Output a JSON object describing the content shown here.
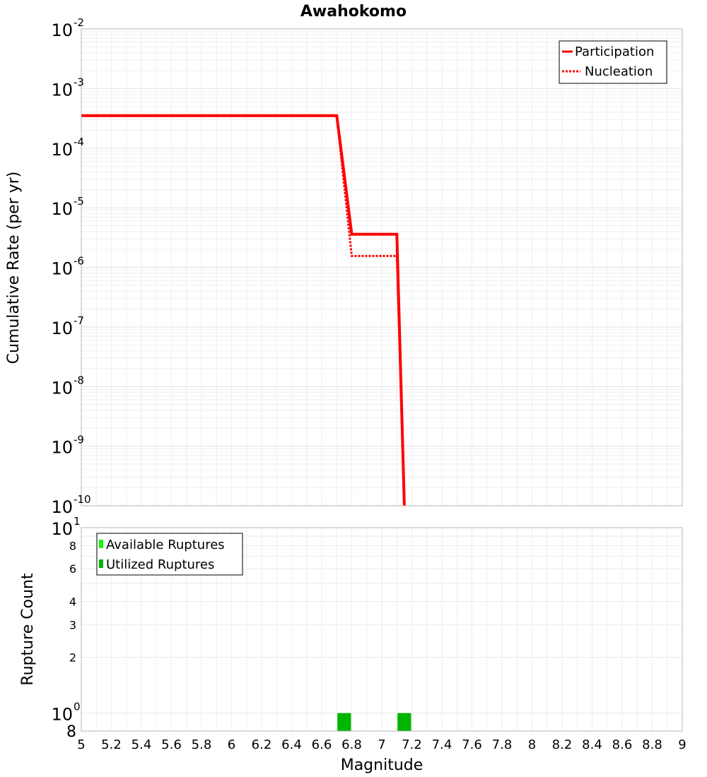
{
  "chart_data": [
    {
      "type": "line",
      "title": "Awahokomo",
      "xlabel": "",
      "ylabel": "Cumulative Rate (per yr)",
      "xlim": [
        5,
        9
      ],
      "ylim": [
        1e-10,
        0.01
      ],
      "yscale": "log",
      "grid": true,
      "legend_position": "top-right",
      "y_tick_labels": [
        {
          "base": "10",
          "exp": "-2"
        },
        {
          "base": "10",
          "exp": "-3"
        },
        {
          "base": "10",
          "exp": "-4"
        },
        {
          "base": "10",
          "exp": "-5"
        },
        {
          "base": "10",
          "exp": "-6"
        },
        {
          "base": "10",
          "exp": "-7"
        },
        {
          "base": "10",
          "exp": "-8"
        },
        {
          "base": "10",
          "exp": "-9"
        },
        {
          "base": "10",
          "exp": "-10"
        }
      ],
      "series": [
        {
          "name": "Participation",
          "style": "solid",
          "color": "#ff0000",
          "x": [
            5.0,
            6.7,
            6.8,
            7.1,
            7.15
          ],
          "y": [
            0.00035,
            0.00035,
            3.6e-06,
            3.6e-06,
            1e-10
          ]
        },
        {
          "name": "Nucleation",
          "style": "dotted",
          "color": "#ff0000",
          "x": [
            5.0,
            6.7,
            6.8,
            7.1,
            7.15
          ],
          "y": [
            0.00035,
            0.00035,
            1.55e-06,
            1.55e-06,
            1e-10
          ]
        }
      ]
    },
    {
      "type": "bar",
      "title": "",
      "xlabel": "Magnitude",
      "ylabel": "Rupture Count",
      "xlim": [
        5,
        9
      ],
      "ylim": [
        0.8,
        10
      ],
      "yscale": "log",
      "grid": true,
      "legend_position": "top-left",
      "x_tick_labels": [
        "5",
        "5.2",
        "5.4",
        "5.6",
        "5.8",
        "6",
        "6.2",
        "6.4",
        "6.6",
        "6.8",
        "7",
        "7.2",
        "7.4",
        "7.6",
        "7.8",
        "8",
        "8.2",
        "8.4",
        "8.6",
        "8.8",
        "9"
      ],
      "y_tick_labels": [
        {
          "label": "8",
          "value": 8
        },
        {
          "label": "6",
          "value": 6
        },
        {
          "label": "4",
          "value": 4
        },
        {
          "label": "3",
          "value": 3
        },
        {
          "label": "2",
          "value": 2
        }
      ],
      "y_major_labels": [
        {
          "base": "10",
          "exp": "1",
          "value": 10
        },
        {
          "base": "10",
          "exp": "0",
          "value": 1
        }
      ],
      "y_bottom_label": {
        "label": "8",
        "value": 0.8
      },
      "bar_width": 0.09,
      "series": [
        {
          "name": "Available Ruptures",
          "color": "#00ff00",
          "x": [
            6.75,
            7.15
          ],
          "values": [
            1,
            1
          ]
        },
        {
          "name": "Utilized Ruptures",
          "color": "#00b400",
          "x": [
            6.75,
            7.15
          ],
          "values": [
            1,
            1
          ]
        }
      ]
    }
  ]
}
